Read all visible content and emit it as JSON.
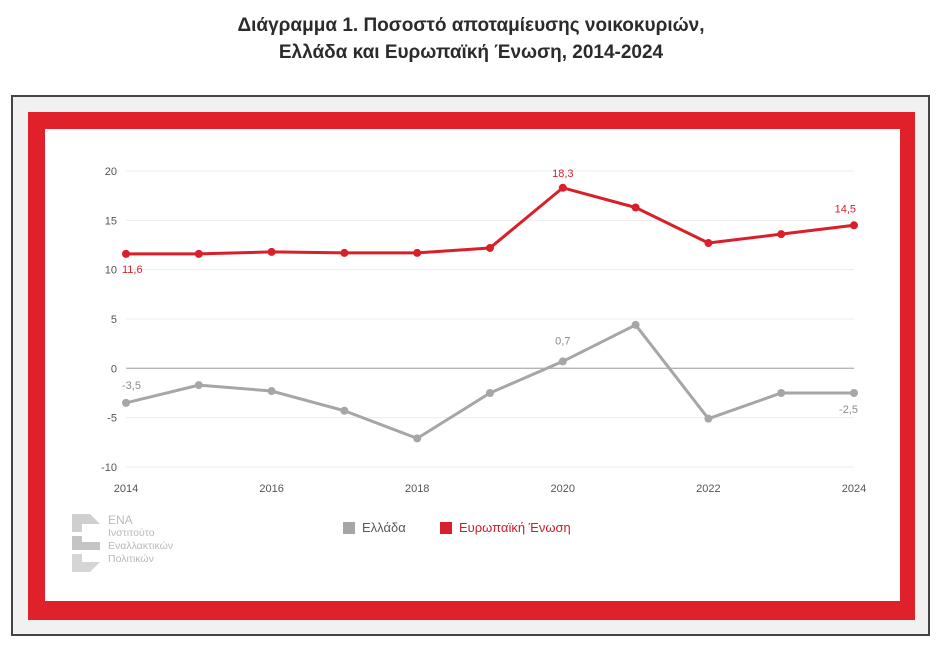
{
  "title_line1": "Διάγραμμα 1. Ποσοστό αποταμίευσης νοικοκυριών,",
  "title_line2": "Ελλάδα και Ευρωπαϊκή Ένωση, 2014-2024",
  "colors": {
    "greece": "#a6a6a6",
    "eu": "#d91f2a",
    "frame_red": "#e0202a"
  },
  "logo": {
    "name": "ΕΝΑ",
    "line1": "Ινστιτούτο",
    "line2": "Εναλλακτικών",
    "line3": "Πολιτικών"
  },
  "chart_data": {
    "type": "line",
    "title": "Διάγραμμα 1. Ποσοστό αποταμίευσης νοικοκυριών, Ελλάδα και Ευρωπαϊκή Ένωση, 2014-2024",
    "x": [
      2014,
      2015,
      2016,
      2017,
      2018,
      2019,
      2020,
      2021,
      2022,
      2023,
      2024
    ],
    "x_ticks": [
      "2014",
      "2016",
      "2018",
      "2020",
      "2022",
      "2024"
    ],
    "y_ticks": [
      "20",
      "15",
      "10",
      "5",
      "0",
      "-5",
      "-10"
    ],
    "ylim": [
      -10,
      20
    ],
    "grid": true,
    "legend_position": "bottom",
    "series": [
      {
        "name": "Ελλάδα",
        "color": "#a6a6a6",
        "values": [
          -3.5,
          -1.7,
          -2.3,
          -4.3,
          -7.1,
          -2.5,
          0.7,
          4.4,
          -5.1,
          -2.5,
          -2.5
        ],
        "labels": [
          {
            "index": 0,
            "text": "-3,5"
          },
          {
            "index": 6,
            "text": "0,7"
          },
          {
            "index": 10,
            "text": "-2,5"
          }
        ]
      },
      {
        "name": "Ευρωπαϊκή Ένωση",
        "color": "#d91f2a",
        "values": [
          11.6,
          11.6,
          11.8,
          11.7,
          11.7,
          12.2,
          18.3,
          16.3,
          12.7,
          13.6,
          14.5
        ],
        "labels": [
          {
            "index": 0,
            "text": "11,6"
          },
          {
            "index": 6,
            "text": "18,3"
          },
          {
            "index": 10,
            "text": "14,5"
          }
        ]
      }
    ]
  }
}
